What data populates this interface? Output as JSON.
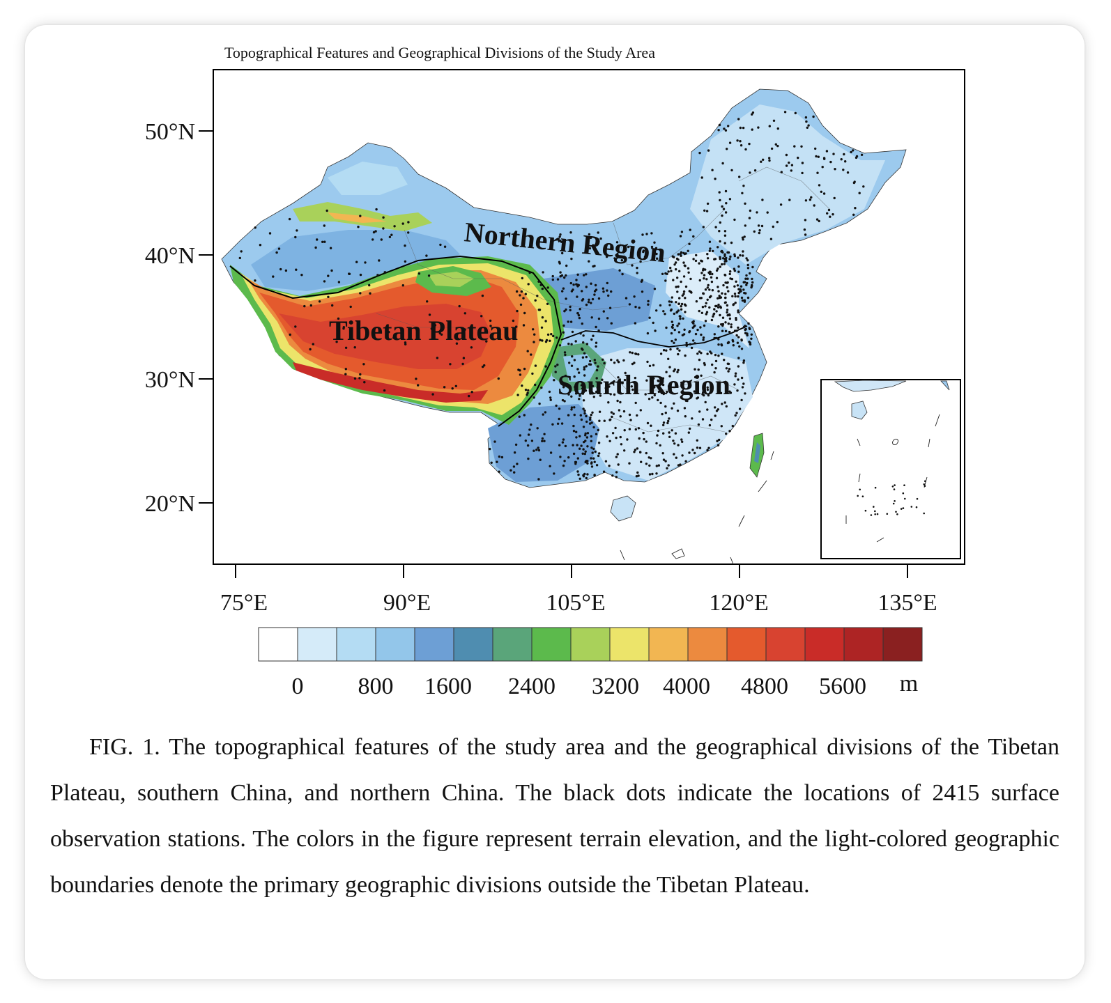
{
  "figure": {
    "title": "Topographical Features and Geographical Divisions of the Study Area",
    "caption": "FIG. 1. The topographical features of the study area and the geographical divisions of the Tibetan Plateau, southern China, and northern China. The black dots indicate the locations of 2415 surface observation stations. The colors in the figure represent terrain elevation, and the light-colored geographic boundaries denote the primary geographic divisions outside the Tibetan Plateau."
  },
  "map": {
    "lat_ticks": [
      "50°N",
      "40°N",
      "30°N",
      "20°N"
    ],
    "lon_ticks": [
      "75°E",
      "90°E",
      "105°E",
      "120°E",
      "135°E"
    ],
    "regions": {
      "tibetan_plateau": "Tibetan Plateau",
      "northern": "Northern Region",
      "southern": "Sourth Region"
    },
    "station_count": 2415,
    "has_inset": true
  },
  "legend": {
    "tick_labels": [
      "0",
      "800",
      "1600",
      "2400",
      "3200",
      "4000",
      "4800",
      "5600"
    ],
    "unit": "m",
    "colors": [
      "#ffffff",
      "#d5ebf9",
      "#b4dcf3",
      "#93c6ea",
      "#6d9fd5",
      "#4f8db0",
      "#5aa57a",
      "#5cba4c",
      "#a9d15a",
      "#ece46a",
      "#f2b652",
      "#ec8a3f",
      "#e45a2d",
      "#d84330",
      "#c92c28",
      "#ad2424",
      "#8a2020"
    ]
  }
}
